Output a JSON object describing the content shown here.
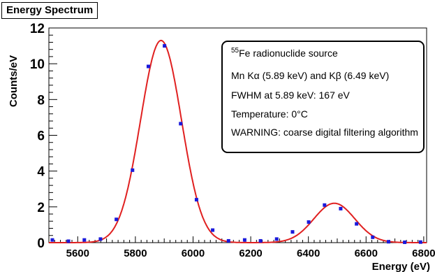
{
  "chart_data": {
    "type": "scatter",
    "title": "Energy Spectrum",
    "xlabel": "Energy (eV)",
    "ylabel": "Counts/eV",
    "xlim": [
      5500,
      6810
    ],
    "ylim": [
      0,
      12
    ],
    "xticks": [
      5600,
      5800,
      6000,
      6200,
      6400,
      6600,
      6800
    ],
    "yticks": [
      0,
      2,
      4,
      6,
      8,
      10,
      12
    ],
    "series": [
      {
        "type": "scatter",
        "color": "#1a1adb",
        "x": [
          5512,
          5568,
          5623,
          5679,
          5734,
          5790,
          5845,
          5901,
          5957,
          6012,
          6068,
          6123,
          6179,
          6234,
          6290,
          6345,
          6401,
          6456,
          6512,
          6567,
          6623,
          6678,
          6734,
          6789
        ],
        "y": [
          0.15,
          0.08,
          0.15,
          0.2,
          1.3,
          4.05,
          9.85,
          11.0,
          6.65,
          2.4,
          0.7,
          0.1,
          0.15,
          0.1,
          0.2,
          0.6,
          1.15,
          2.1,
          1.9,
          1.05,
          0.3,
          0.05,
          0.02,
          0.03
        ]
      },
      {
        "type": "line",
        "color": "#e02020",
        "model": "two-gaussian",
        "peaks": [
          {
            "center": 5889,
            "amplitude": 11.3,
            "sigma": 71
          },
          {
            "center": 6490,
            "amplitude": 2.2,
            "sigma": 71
          }
        ]
      }
    ],
    "annotations": {
      "line1_sup": "55",
      "line1": "Fe radionuclide source",
      "line2": "Mn Kα (5.89 keV) and Kβ (6.49 keV)",
      "line3": "FWHM at 5.89 keV: 167 eV",
      "line4": "Temperature: 0°C",
      "line5": "WARNING: coarse digital filtering algorithm"
    },
    "grid": false,
    "legend": "none"
  }
}
